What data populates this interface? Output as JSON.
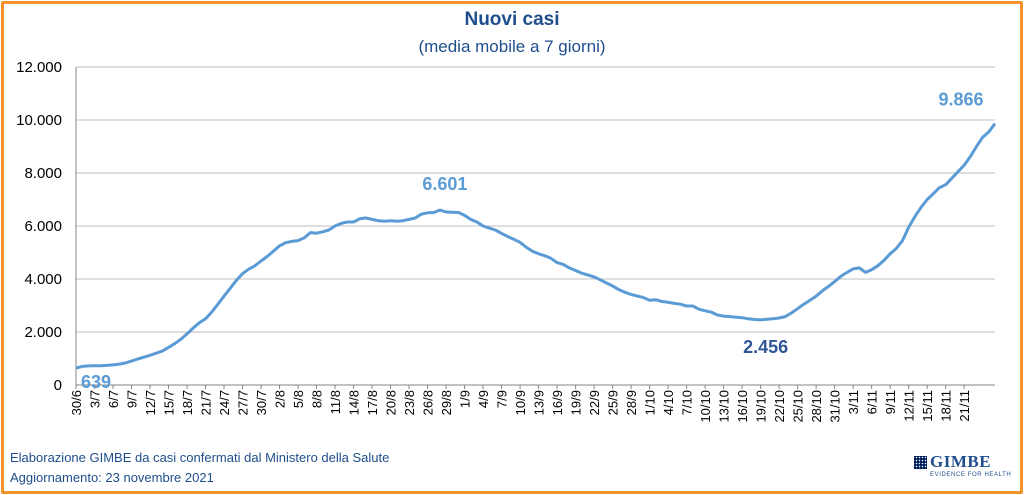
{
  "chart_data": {
    "type": "line",
    "title": "Nuovi casi",
    "subtitle": "(media mobile a 7 giorni)",
    "ylim": [
      0,
      12000
    ],
    "yticks": [
      0,
      2000,
      4000,
      6000,
      8000,
      10000,
      12000
    ],
    "ytick_labels": [
      "0",
      "2.000",
      "4.000",
      "6.000",
      "8.000",
      "10.000",
      "12.000"
    ],
    "x_start": "30/6",
    "x_end": "23/11",
    "xtick_labels": [
      "30/6",
      "3/7",
      "6/7",
      "9/7",
      "12/7",
      "15/7",
      "18/7",
      "21/7",
      "24/7",
      "27/7",
      "30/7",
      "2/8",
      "5/8",
      "8/8",
      "11/8",
      "14/8",
      "17/8",
      "20/8",
      "23/8",
      "26/8",
      "29/8",
      "1/9",
      "4/9",
      "7/9",
      "10/9",
      "13/9",
      "16/9",
      "19/9",
      "22/9",
      "25/9",
      "28/9",
      "1/10",
      "4/10",
      "7/10",
      "10/10",
      "13/10",
      "16/10",
      "19/10",
      "22/10",
      "25/10",
      "28/10",
      "31/10",
      "3/11",
      "6/11",
      "9/11",
      "12/11",
      "15/11",
      "18/11",
      "21/11"
    ],
    "grid": true,
    "color": "#5B9BD5",
    "series": [
      {
        "values": [
          639,
          700,
          720,
          730,
          730,
          740,
          760,
          790,
          830,
          900,
          980,
          1050,
          1120,
          1200,
          1280,
          1420,
          1560,
          1730,
          1930,
          2150,
          2350,
          2500,
          2750,
          3050,
          3350,
          3650,
          3950,
          4200,
          4370,
          4500,
          4680,
          4850,
          5050,
          5250,
          5370,
          5420,
          5450,
          5550,
          5750,
          5730,
          5780,
          5850,
          6000,
          6100,
          6150,
          6150,
          6270,
          6300,
          6250,
          6200,
          6180,
          6200,
          6180,
          6200,
          6250,
          6300,
          6450,
          6500,
          6510,
          6601,
          6530,
          6520,
          6510,
          6400,
          6250,
          6150,
          6000,
          5920,
          5850,
          5720,
          5600,
          5500,
          5380,
          5200,
          5050,
          4950,
          4880,
          4780,
          4620,
          4550,
          4420,
          4320,
          4220,
          4150,
          4080,
          3970,
          3850,
          3740,
          3600,
          3500,
          3420,
          3360,
          3300,
          3200,
          3220,
          3150,
          3120,
          3080,
          3050,
          2980,
          2980,
          2860,
          2800,
          2750,
          2640,
          2600,
          2580,
          2560,
          2540,
          2500,
          2470,
          2456,
          2480,
          2500,
          2530,
          2580,
          2720,
          2880,
          3050,
          3200,
          3350,
          3550,
          3720,
          3900,
          4100,
          4250,
          4380,
          4420,
          4250,
          4350,
          4500,
          4700,
          4950,
          5150,
          5450,
          5950,
          6350,
          6700,
          7000,
          7220,
          7450,
          7560,
          7800,
          8050,
          8300,
          8620,
          9000,
          9350,
          9550,
          9866
        ]
      }
    ],
    "annotations": [
      {
        "text": "639",
        "color": "#5B9BD5"
      },
      {
        "text": "6.601",
        "color": "#5B9BD5"
      },
      {
        "text": "2.456",
        "color": "#2F5597"
      },
      {
        "text": "9.866",
        "color": "#5B9BD5"
      }
    ]
  },
  "footer": {
    "line1": "Elaborazione GIMBE da casi confermati dal Ministero della Salute",
    "line2": "Aggiornamento: 23 novembre 2021"
  },
  "logo": {
    "brand": "GIMBE",
    "tagline": "EVIDENCE FOR HEALTH"
  }
}
